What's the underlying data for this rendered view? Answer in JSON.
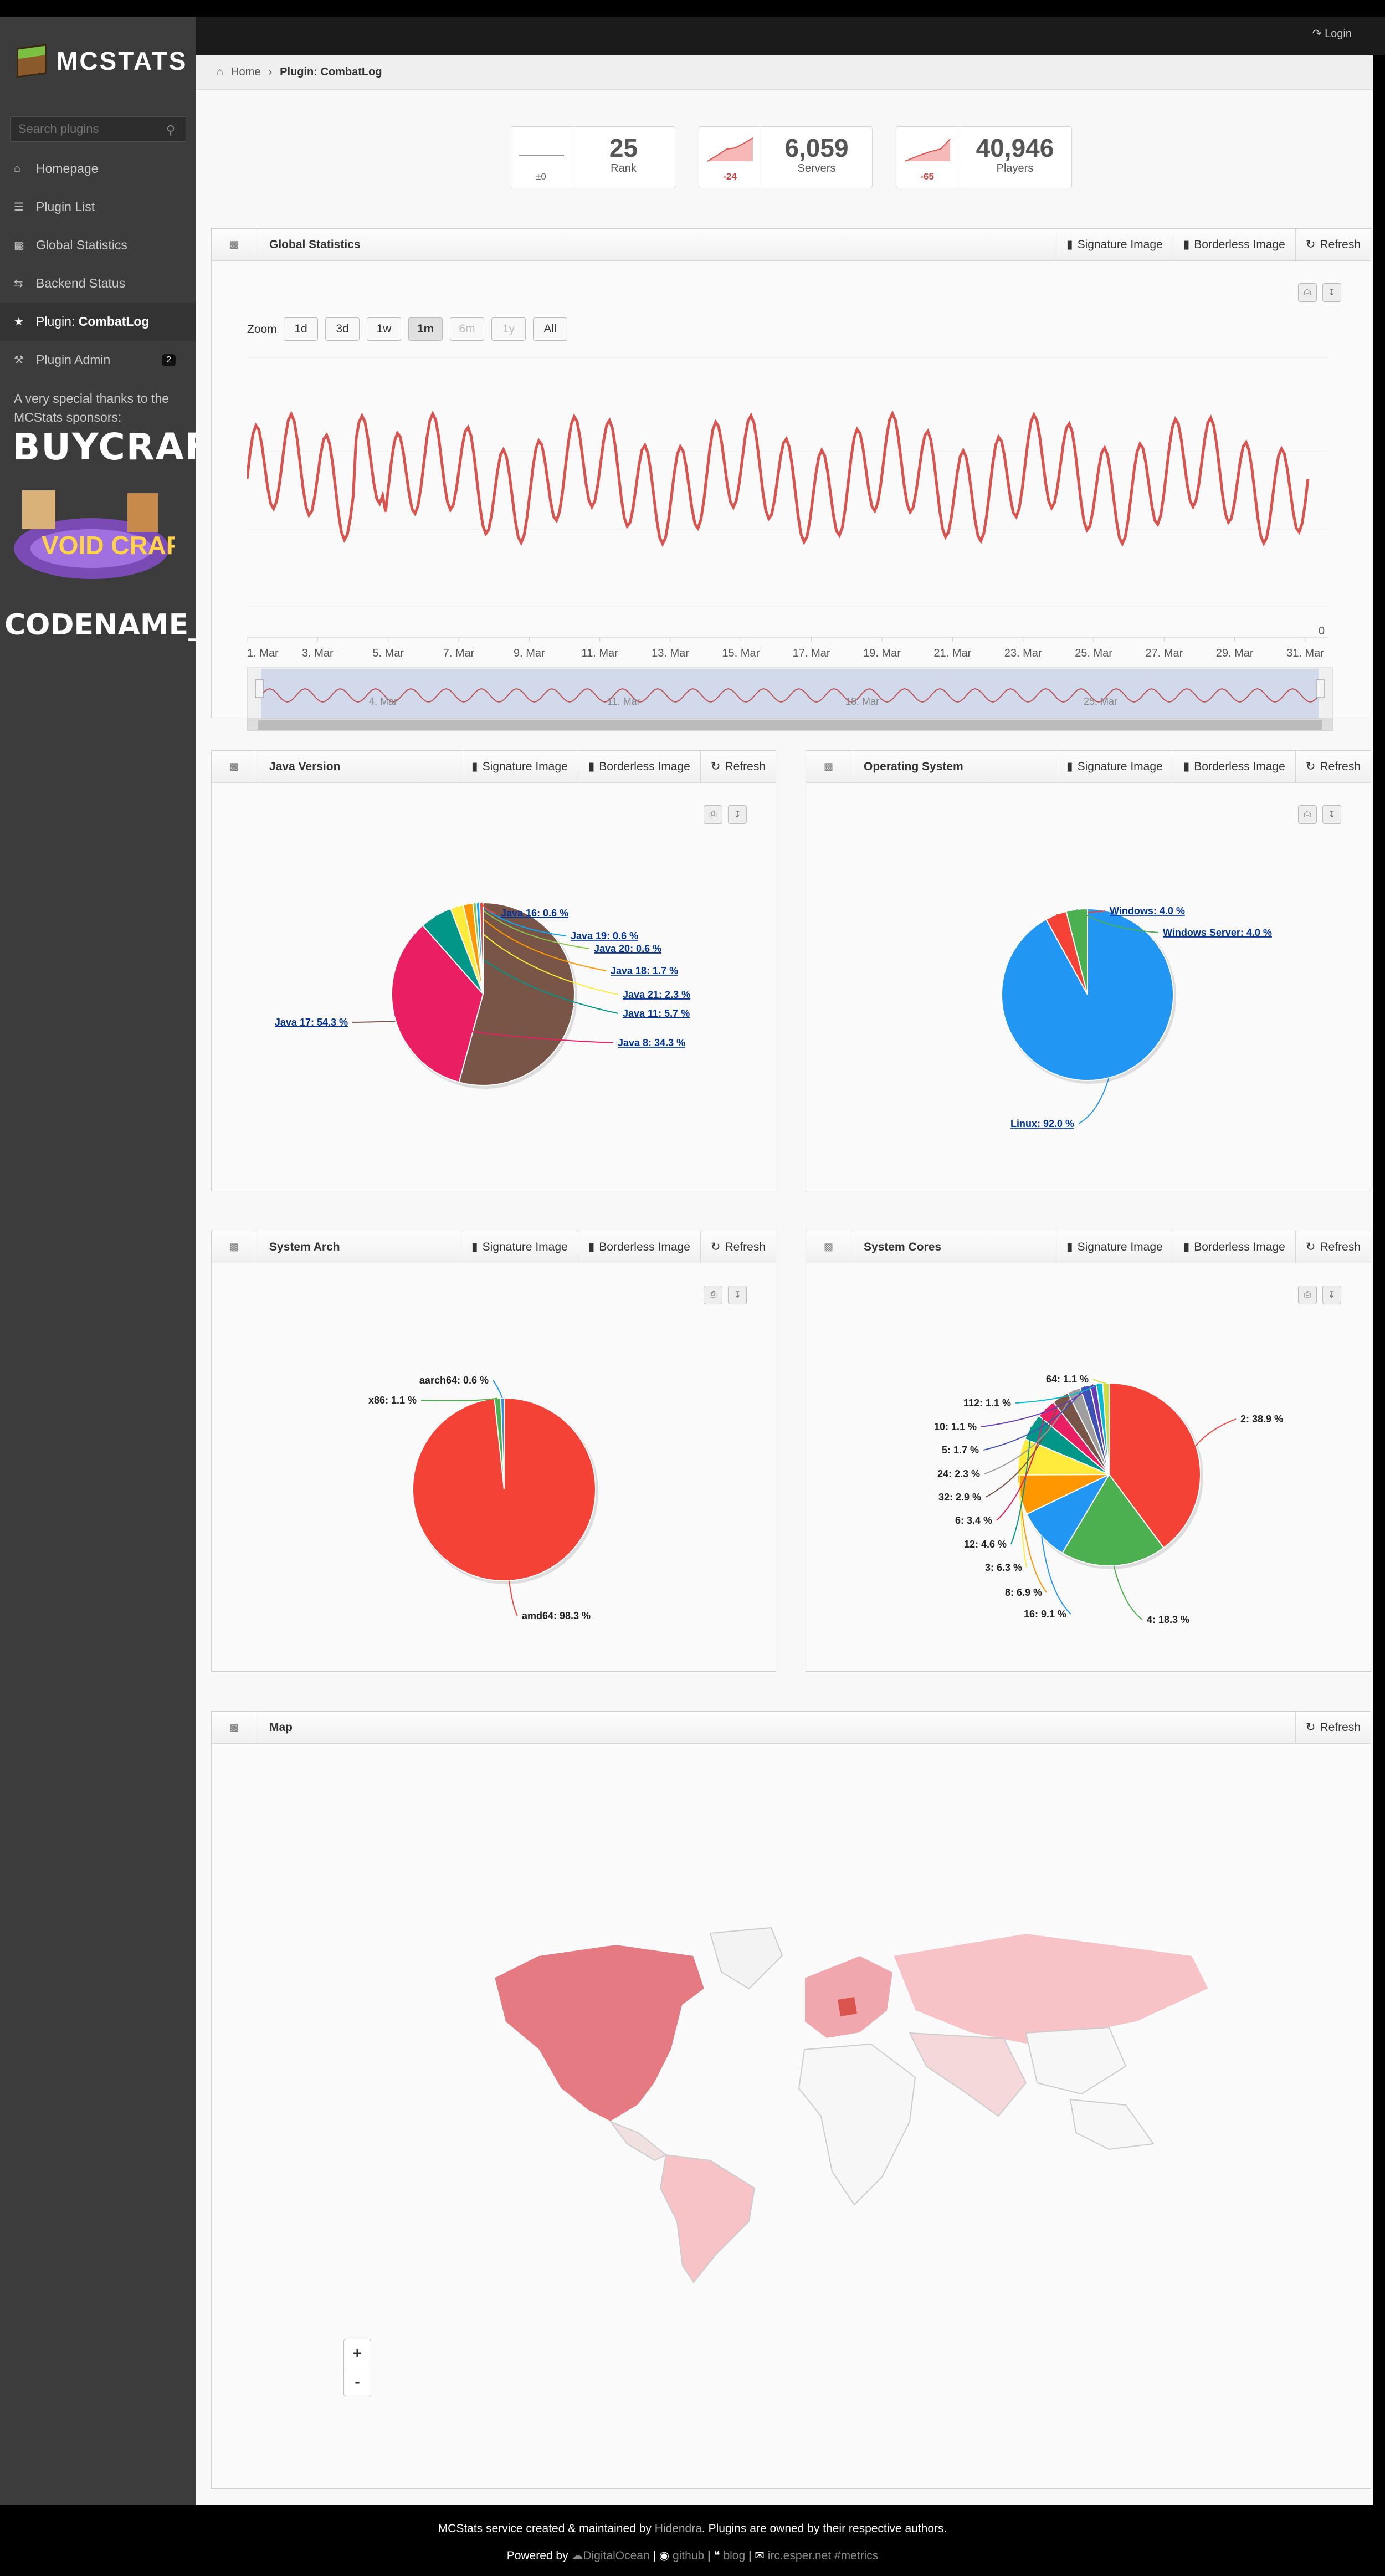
{
  "topbar": {
    "login": "Login"
  },
  "sidebar": {
    "brand": "MCSTATS",
    "search_placeholder": "Search plugins",
    "items": [
      {
        "label": "Homepage",
        "icon": "home-icon"
      },
      {
        "label": "Plugin List",
        "icon": "list-icon"
      },
      {
        "label": "Global Statistics",
        "icon": "signal-icon"
      },
      {
        "label": "Backend Status",
        "icon": "retweet-icon"
      },
      {
        "label_prefix": "Plugin: ",
        "label_strong": "CombatLog",
        "icon": "star-icon"
      },
      {
        "label": "Plugin Admin",
        "icon": "wrench-icon",
        "badge": "2"
      }
    ],
    "thanks": "A very special thanks to the MCStats sponsors:",
    "sponsors": [
      "BUYCRAFT",
      "VOID CRAFT",
      "CODENAME_Y"
    ]
  },
  "breadcrumb": {
    "home": "Home",
    "current": "Plugin: CombatLog"
  },
  "stats": [
    {
      "delta": "±0",
      "value": "25",
      "label": "Rank"
    },
    {
      "delta": "-24",
      "value": "6,059",
      "label": "Servers"
    },
    {
      "delta": "-65",
      "value": "40,946",
      "label": "Players"
    }
  ],
  "buttons": {
    "signature": "Signature Image",
    "borderless": "Borderless Image",
    "refresh": "Refresh"
  },
  "global": {
    "title": "Global Statistics",
    "zoom_label": "Zoom",
    "zoom": [
      "1d",
      "3d",
      "1w",
      "1m",
      "6m",
      "1y",
      "All"
    ],
    "zero": "0",
    "navigator_labels": [
      "4. Mar",
      "11. Mar",
      "18. Mar",
      "25. Mar"
    ]
  },
  "chart_data": [
    {
      "type": "line",
      "title": "Global Statistics",
      "x": [
        "1. Mar",
        "3. Mar",
        "5. Mar",
        "7. Mar",
        "9. Mar",
        "11. Mar",
        "13. Mar",
        "15. Mar",
        "17. Mar",
        "19. Mar",
        "21. Mar",
        "23. Mar",
        "25. Mar",
        "27. Mar",
        "29. Mar",
        "31. Mar"
      ],
      "series_color": "#d9534f",
      "ylim": [
        0,
        100
      ]
    },
    {
      "type": "pie",
      "title": "Java Version",
      "slices": [
        {
          "label": "Java 17: 54.3 %",
          "value": 54.3,
          "color": "#795548"
        },
        {
          "label": "Java 8: 34.3 %",
          "value": 34.3,
          "color": "#e91e63"
        },
        {
          "label": "Java 11: 5.7 %",
          "value": 5.7,
          "color": "#009688"
        },
        {
          "label": "Java 21: 2.3 %",
          "value": 2.3,
          "color": "#ffeb3b"
        },
        {
          "label": "Java 18: 1.7 %",
          "value": 1.7,
          "color": "#ff9800"
        },
        {
          "label": "Java 20: 0.6 %",
          "value": 0.6,
          "color": "#8bc34a"
        },
        {
          "label": "Java 19: 0.6 %",
          "value": 0.6,
          "color": "#03a9f4"
        },
        {
          "label": "Java 16: 0.6 %",
          "value": 0.6,
          "color": "#f44336"
        }
      ]
    },
    {
      "type": "pie",
      "title": "Operating System",
      "slices": [
        {
          "label": "Linux: 92.0 %",
          "value": 92.0,
          "color": "#2196f3"
        },
        {
          "label": "Windows: 4.0 %",
          "value": 4.0,
          "color": "#f44336"
        },
        {
          "label": "Windows Server: 4.0 %",
          "value": 4.0,
          "color": "#4caf50"
        }
      ]
    },
    {
      "type": "pie",
      "title": "System Arch",
      "slices": [
        {
          "label": "amd64: 98.3 %",
          "value": 98.3,
          "color": "#f44336"
        },
        {
          "label": "x86: 1.1 %",
          "value": 1.1,
          "color": "#4caf50"
        },
        {
          "label": "aarch64: 0.6 %",
          "value": 0.6,
          "color": "#2196f3"
        }
      ]
    },
    {
      "type": "pie",
      "title": "System Cores",
      "slices": [
        {
          "label": "2: 38.9 %",
          "value": 38.9,
          "color": "#f44336"
        },
        {
          "label": "4: 18.3 %",
          "value": 18.3,
          "color": "#4caf50"
        },
        {
          "label": "16: 9.1 %",
          "value": 9.1,
          "color": "#2196f3"
        },
        {
          "label": "8: 6.9 %",
          "value": 6.9,
          "color": "#ff9800"
        },
        {
          "label": "3: 6.3 %",
          "value": 6.3,
          "color": "#ffeb3b"
        },
        {
          "label": "12: 4.6 %",
          "value": 4.6,
          "color": "#009688"
        },
        {
          "label": "6: 3.4 %",
          "value": 3.4,
          "color": "#e91e63"
        },
        {
          "label": "32: 2.9 %",
          "value": 2.9,
          "color": "#795548"
        },
        {
          "label": "24: 2.3 %",
          "value": 2.3,
          "color": "#9e9e9e"
        },
        {
          "label": "5: 1.7 %",
          "value": 1.7,
          "color": "#3f51b5"
        },
        {
          "label": "10: 1.1 %",
          "value": 1.1,
          "color": "#673ab7"
        },
        {
          "label": "112: 1.1 %",
          "value": 1.1,
          "color": "#00bcd4"
        },
        {
          "label": "64: 1.1 %",
          "value": 1.1,
          "color": "#cddc39"
        }
      ]
    }
  ],
  "widgets": {
    "java": "Java Version",
    "os": "Operating System",
    "arch": "System Arch",
    "cores": "System Cores",
    "map": "Map"
  },
  "map": {
    "zoom_in": "+",
    "zoom_out": "-"
  },
  "footer": {
    "line1_a": "MCStats service created & maintained by ",
    "line1_author": "Hidendra",
    "line1_b": ". Plugins are owned by their respective authors.",
    "powered": "Powered by ",
    "host": "DigitalOcean",
    "github": "github",
    "blog": "blog",
    "irc": "irc.esper.net #metrics"
  },
  "colors": {
    "accent": "#d9534f",
    "sidebar": "#3c3c3c"
  }
}
